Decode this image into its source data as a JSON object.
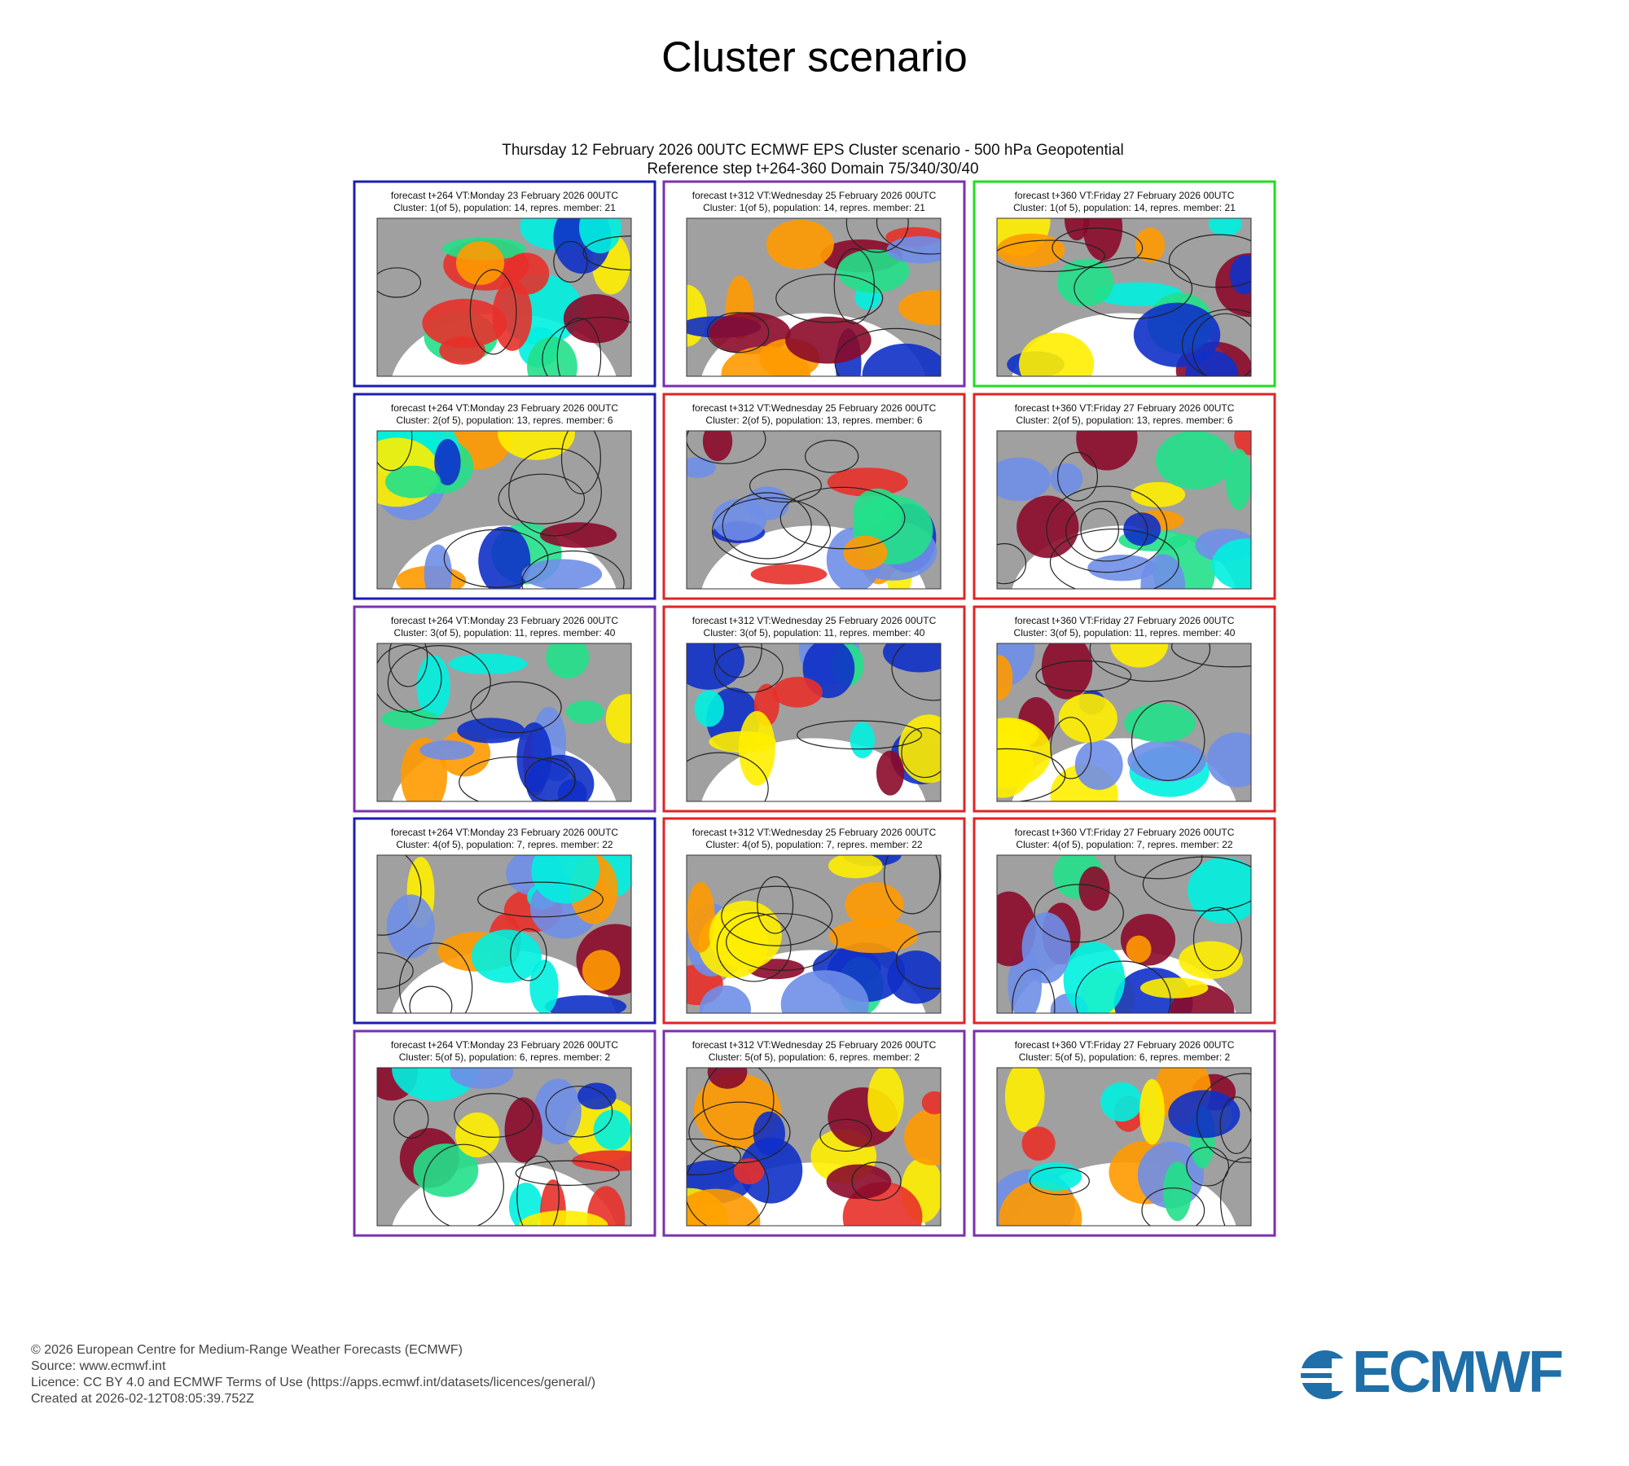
{
  "title": "Cluster scenario",
  "subtitle": [
    "Thursday 12 February 2026 00UTC ECMWF EPS Cluster scenario - 500 hPa Geopotential",
    "Reference step t+264-360 Domain 75/340/30/40"
  ],
  "panels": [
    {
      "line1": "forecast t+264 VT:Monday 23 February 2026 00UTC",
      "line2": "Cluster: 1(of 5), population: 14, repres. member: 21",
      "border": "#1c1cb4"
    },
    {
      "line1": "forecast t+312 VT:Wednesday 25 February 2026 00UTC",
      "line2": "Cluster: 1(of 5), population: 14, repres. member: 21",
      "border": "#7b2fb0"
    },
    {
      "line1": "forecast t+360 VT:Friday 27 February 2026 00UTC",
      "line2": "Cluster: 1(of 5), population: 14, repres. member: 21",
      "border": "#22dd22"
    },
    {
      "line1": "forecast t+264 VT:Monday 23 February 2026 00UTC",
      "line2": "Cluster: 2(of 5), population: 13, repres. member: 6",
      "border": "#1c1cb4"
    },
    {
      "line1": "forecast t+312 VT:Wednesday 25 February 2026 00UTC",
      "line2": "Cluster: 2(of 5), population: 13, repres. member: 6",
      "border": "#e02424"
    },
    {
      "line1": "forecast t+360 VT:Friday 27 February 2026 00UTC",
      "line2": "Cluster: 2(of 5), population: 13, repres. member: 6",
      "border": "#e02424"
    },
    {
      "line1": "forecast t+264 VT:Monday 23 February 2026 00UTC",
      "line2": "Cluster: 3(of 5), population: 11, repres. member: 40",
      "border": "#7b2fb0"
    },
    {
      "line1": "forecast t+312 VT:Wednesday 25 February 2026 00UTC",
      "line2": "Cluster: 3(of 5), population: 11, repres. member: 40",
      "border": "#e02424"
    },
    {
      "line1": "forecast t+360 VT:Friday 27 February 2026 00UTC",
      "line2": "Cluster: 3(of 5), population: 11, repres. member: 40",
      "border": "#e02424"
    },
    {
      "line1": "forecast t+264 VT:Monday 23 February 2026 00UTC",
      "line2": "Cluster: 4(of 5), population: 7, repres. member: 22",
      "border": "#1c1cb4"
    },
    {
      "line1": "forecast t+312 VT:Wednesday 25 February 2026 00UTC",
      "line2": "Cluster: 4(of 5), population: 7, repres. member: 22",
      "border": "#e02424"
    },
    {
      "line1": "forecast t+360 VT:Friday 27 February 2026 00UTC",
      "line2": "Cluster: 4(of 5), population: 7, repres. member: 22",
      "border": "#e02424"
    },
    {
      "line1": "forecast t+264 VT:Monday 23 February 2026 00UTC",
      "line2": "Cluster: 5(of 5), population: 6, repres. member: 2",
      "border": "#7b2fb0"
    },
    {
      "line1": "forecast t+312 VT:Wednesday 25 February 2026 00UTC",
      "line2": "Cluster: 5(of 5), population: 6, repres. member: 2",
      "border": "#7b2fb0"
    },
    {
      "line1": "forecast t+360 VT:Friday 27 February 2026 00UTC",
      "line2": "Cluster: 5(of 5), population: 6, repres. member: 2",
      "border": "#7b2fb0"
    }
  ],
  "footer": [
    "© 2026 European Centre for Medium-Range Weather Forecasts (ECMWF)",
    "Source: www.ecmwf.int",
    "Licence: CC BY 4.0 and ECMWF Terms of Use (https://apps.ecmwf.int/datasets/licences/general/)",
    "Created at 2026-02-12T08:05:39.752Z"
  ],
  "logo": "ECMWF"
}
